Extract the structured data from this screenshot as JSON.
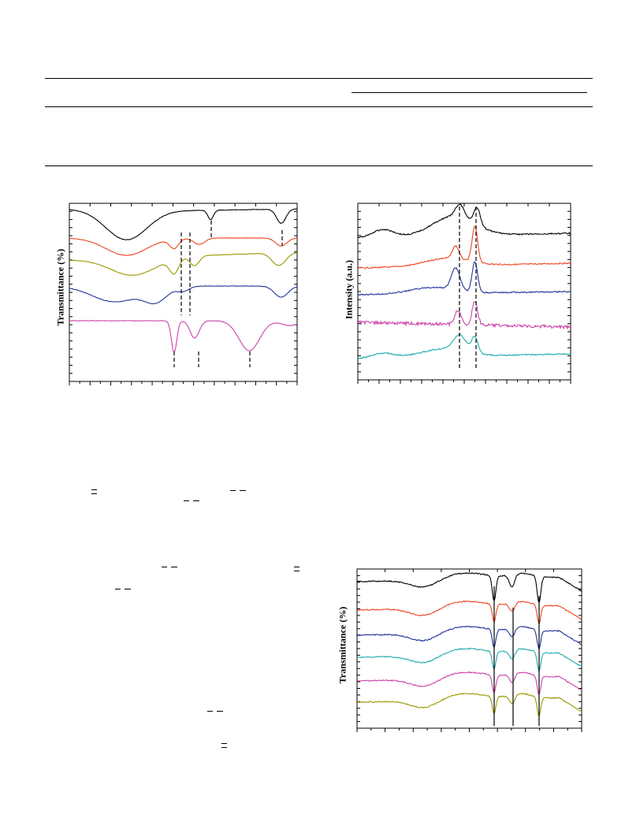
{
  "page": {
    "background": "#ffffff"
  },
  "chart_data": [
    {
      "type": "line",
      "ylabel": "Transmittance (%)",
      "xlabel": "",
      "title": "",
      "series_colors": [
        "#000000",
        "#ee4422",
        "#999900",
        "#223399",
        "#cc44aa"
      ],
      "series_count": 5,
      "grid": false,
      "reference_lines": "dashed vertical markers"
    },
    {
      "type": "line",
      "ylabel": "Intensity (a.u.)",
      "xlabel": "",
      "title": "",
      "series_colors": [
        "#000000",
        "#ee4422",
        "#223399",
        "#cc44aa",
        "#22aaaa"
      ],
      "series_count": 5,
      "grid": false,
      "reference_lines": "two dashed vertical lines"
    },
    {
      "type": "line",
      "ylabel": "Transmittance (%)",
      "xlabel": "",
      "title": "",
      "series_colors": [
        "#000000",
        "#ee4422",
        "#223399",
        "#22aaaa",
        "#cc44aa",
        "#999900"
      ],
      "series_count": 6,
      "grid": false,
      "reference_lines": "three solid vertical lines"
    }
  ]
}
